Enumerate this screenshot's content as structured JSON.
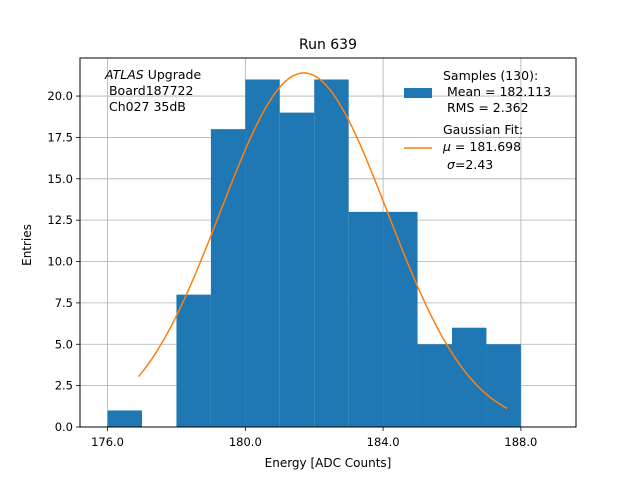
{
  "chart_data": {
    "type": "bar",
    "title": "Run 639",
    "xlabel": "Energy [ADC Counts]",
    "ylabel": "Entries",
    "xlim": [
      175.2,
      189.6
    ],
    "ylim": [
      0,
      22.3
    ],
    "x_ticks": [
      176.0,
      180.0,
      184.0,
      188.0
    ],
    "x_tick_labels": [
      "176.0",
      "180.0",
      "184.0",
      "188.0"
    ],
    "y_ticks": [
      0.0,
      2.5,
      5.0,
      7.5,
      10.0,
      12.5,
      15.0,
      17.5,
      20.0
    ],
    "y_tick_labels": [
      "0.0",
      "2.5",
      "5.0",
      "7.5",
      "10.0",
      "12.5",
      "15.0",
      "17.5",
      "20.0"
    ],
    "grid": true,
    "bar_color": "#1f77b4",
    "fit_color": "#ff7f0e",
    "bins": [
      {
        "x0": 176.0,
        "x1": 177.0,
        "count": 1
      },
      {
        "x0": 177.0,
        "x1": 178.0,
        "count": 0
      },
      {
        "x0": 178.0,
        "x1": 179.0,
        "count": 8
      },
      {
        "x0": 179.0,
        "x1": 180.0,
        "count": 18
      },
      {
        "x0": 180.0,
        "x1": 181.0,
        "count": 21
      },
      {
        "x0": 181.0,
        "x1": 182.0,
        "count": 19
      },
      {
        "x0": 182.0,
        "x1": 183.0,
        "count": 21
      },
      {
        "x0": 183.0,
        "x1": 184.0,
        "count": 13
      },
      {
        "x0": 184.0,
        "x1": 185.0,
        "count": 13
      },
      {
        "x0": 185.0,
        "x1": 186.0,
        "count": 5
      },
      {
        "x0": 186.0,
        "x1": 187.0,
        "count": 6
      },
      {
        "x0": 187.0,
        "x1": 188.0,
        "count": 5
      }
    ],
    "fit": {
      "mu": 181.698,
      "sigma": 2.43,
      "amplitude": 21.4,
      "x_range": [
        176.9,
        187.6
      ]
    },
    "annotation": {
      "line1_italic": "ATLAS",
      "line1_rest": " Upgrade",
      "line2": " Board187722",
      "line3": " Ch027 35dB"
    },
    "legend": {
      "position": "upper right",
      "samples_title": "Samples (130):",
      "samples_mean": " Mean = 182.113",
      "samples_rms": " RMS = 2.362",
      "fit_title": "Gaussian Fit:",
      "fit_mu_symbol": "μ",
      "fit_mu_value": " = 181.698",
      "fit_sigma_symbol": "σ",
      "fit_sigma_value": "=2.43"
    }
  }
}
